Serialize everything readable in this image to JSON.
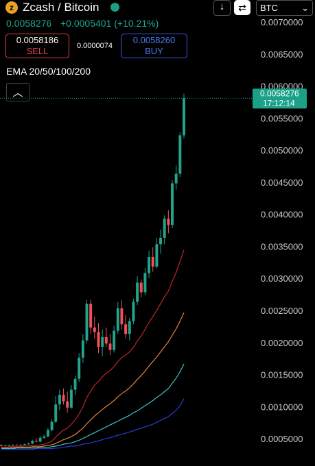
{
  "header": {
    "title": "Zcash / Bitcoin",
    "price": "0.0058276",
    "change": "+0.0005401 (+10.21%)",
    "sell_price": "0.0058186",
    "sell_label": "SELL",
    "spread": "0.0000074",
    "buy_price": "0.0058260",
    "buy_label": "BUY",
    "currency": "BTC",
    "indicator": "EMA 20/50/100/200"
  },
  "chart_data": {
    "type": "candlestick",
    "up_color": "#22a38c",
    "down_color": "#f0505a",
    "open": [
      0.00041,
      0.0004,
      0.00041,
      0.00041,
      0.00042,
      0.00041,
      0.00042,
      0.00043,
      0.00044,
      0.00048,
      0.00047,
      0.00053,
      0.00055,
      0.00065,
      0.00078,
      0.00105,
      0.0012,
      0.0011,
      0.001,
      0.00128,
      0.00145,
      0.00178,
      0.00205,
      0.00262,
      0.00225,
      0.00218,
      0.00195,
      0.0021,
      0.002,
      0.0019,
      0.0022,
      0.00255,
      0.0023,
      0.00215,
      0.00235,
      0.00265,
      0.00295,
      0.0028,
      0.0031,
      0.00335,
      0.0032,
      0.00355,
      0.00365,
      0.00395,
      0.00385,
      0.0045,
      0.00465,
      0.00525
    ],
    "high": [
      0.00043,
      0.00042,
      0.00042,
      0.00043,
      0.00043,
      0.00043,
      0.00044,
      0.00045,
      0.0005,
      0.00052,
      0.00055,
      0.00058,
      0.00068,
      0.00082,
      0.00118,
      0.00128,
      0.0013,
      0.00125,
      0.00135,
      0.0015,
      0.00185,
      0.00215,
      0.00268,
      0.00268,
      0.00242,
      0.00232,
      0.00222,
      0.00225,
      0.00215,
      0.00228,
      0.00265,
      0.00268,
      0.00245,
      0.0024,
      0.0027,
      0.00305,
      0.003,
      0.00318,
      0.00345,
      0.0035,
      0.00365,
      0.00378,
      0.004,
      0.00408,
      0.00455,
      0.00478,
      0.0053,
      0.0059
    ],
    "low": [
      0.00039,
      0.00039,
      0.0004,
      0.0004,
      0.00041,
      0.0004,
      0.00041,
      0.00042,
      0.00043,
      0.00046,
      0.00046,
      0.00051,
      0.00054,
      0.00063,
      0.00076,
      0.00096,
      0.00105,
      0.00092,
      0.00098,
      0.0012,
      0.0014,
      0.0017,
      0.002,
      0.00215,
      0.00208,
      0.00185,
      0.0018,
      0.00195,
      0.00182,
      0.00186,
      0.00215,
      0.00222,
      0.00208,
      0.00205,
      0.0023,
      0.0026,
      0.00272,
      0.00275,
      0.00302,
      0.00312,
      0.00318,
      0.0034,
      0.00355,
      0.00372,
      0.0038,
      0.0044,
      0.0046,
      0.0052
    ],
    "close": [
      0.0004,
      0.00041,
      0.00041,
      0.00042,
      0.00041,
      0.00042,
      0.00043,
      0.00044,
      0.00048,
      0.00047,
      0.00053,
      0.00055,
      0.00065,
      0.00078,
      0.00105,
      0.0012,
      0.0011,
      0.001,
      0.00128,
      0.00145,
      0.00178,
      0.00205,
      0.00262,
      0.00225,
      0.00218,
      0.00195,
      0.0021,
      0.002,
      0.0019,
      0.0022,
      0.00255,
      0.0023,
      0.00215,
      0.00235,
      0.00265,
      0.00295,
      0.0028,
      0.0031,
      0.00335,
      0.0032,
      0.00355,
      0.00365,
      0.00395,
      0.00385,
      0.0045,
      0.00465,
      0.00525,
      0.0058276
    ],
    "series": [
      {
        "color": "#c0262b",
        "values": [
          0.00038,
          0.00038,
          0.00039,
          0.00039,
          0.00039,
          0.00039,
          0.0004,
          0.0004,
          0.00041,
          0.00041,
          0.00042,
          0.00043,
          0.00045,
          0.00048,
          0.00054,
          0.0006,
          0.00065,
          0.00068,
          0.00074,
          0.00081,
          0.0009,
          0.00101,
          0.00116,
          0.00126,
          0.00135,
          0.00141,
          0.00148,
          0.00154,
          0.00158,
          0.00164,
          0.00172,
          0.00178,
          0.00182,
          0.00187,
          0.00194,
          0.00204,
          0.00212,
          0.00222,
          0.00233,
          0.00242,
          0.00252,
          0.00262,
          0.00273,
          0.00282,
          0.00297,
          0.00311,
          0.00328,
          0.00346
        ]
      },
      {
        "color": "#e8823a",
        "values": [
          0.00037,
          0.00037,
          0.00037,
          0.00038,
          0.00038,
          0.00038,
          0.00038,
          0.00038,
          0.00039,
          0.00039,
          0.00039,
          0.0004,
          0.00041,
          0.00042,
          0.00044,
          0.00047,
          0.0005,
          0.00052,
          0.00055,
          0.00058,
          0.00063,
          0.00068,
          0.00075,
          0.00081,
          0.00087,
          0.00092,
          0.00097,
          0.00102,
          0.00106,
          0.00111,
          0.00117,
          0.00122,
          0.00126,
          0.00131,
          0.00137,
          0.00144,
          0.0015,
          0.00157,
          0.00165,
          0.00172,
          0.00179,
          0.00187,
          0.00195,
          0.00203,
          0.00213,
          0.00223,
          0.00235,
          0.00248
        ]
      },
      {
        "color": "#3cc6c4",
        "values": [
          0.00036,
          0.00036,
          0.00036,
          0.00036,
          0.00037,
          0.00037,
          0.00037,
          0.00037,
          0.00037,
          0.00037,
          0.00038,
          0.00038,
          0.00038,
          0.00039,
          0.0004,
          0.00041,
          0.00043,
          0.00044,
          0.00045,
          0.00047,
          0.00049,
          0.00052,
          0.00055,
          0.00058,
          0.00061,
          0.00064,
          0.00067,
          0.0007,
          0.00073,
          0.00076,
          0.00079,
          0.00082,
          0.00085,
          0.00088,
          0.00092,
          0.00095,
          0.00099,
          0.00103,
          0.00107,
          0.00111,
          0.00116,
          0.0012,
          0.00125,
          0.0013,
          0.00138,
          0.00146,
          0.00156,
          0.00168
        ]
      },
      {
        "color": "#2a3adf",
        "values": [
          0.00035,
          0.00035,
          0.00035,
          0.00035,
          0.00035,
          0.00035,
          0.00035,
          0.00035,
          0.00035,
          0.00036,
          0.00036,
          0.00036,
          0.00036,
          0.00036,
          0.00037,
          0.00037,
          0.00038,
          0.00039,
          0.0004,
          0.0004,
          0.00041,
          0.00043,
          0.00044,
          0.00045,
          0.00047,
          0.00048,
          0.0005,
          0.00052,
          0.00053,
          0.00055,
          0.00057,
          0.00058,
          0.0006,
          0.00062,
          0.00064,
          0.00066,
          0.00068,
          0.0007,
          0.00072,
          0.00074,
          0.00077,
          0.0008,
          0.00083,
          0.00086,
          0.00091,
          0.00096,
          0.00103,
          0.00114
        ]
      }
    ],
    "ylim": [
      0.0001,
      0.00735
    ],
    "yticks": [
      {
        "value": 0.0005,
        "label": "0.0005000"
      },
      {
        "value": 0.001,
        "label": "0.0010000"
      },
      {
        "value": 0.0015,
        "label": "0.0015000"
      },
      {
        "value": 0.002,
        "label": "0.0020000"
      },
      {
        "value": 0.0025,
        "label": "0.0025000"
      },
      {
        "value": 0.003,
        "label": "0.0030000"
      },
      {
        "value": 0.0035,
        "label": "0.0035000"
      },
      {
        "value": 0.004,
        "label": "0.0040000"
      },
      {
        "value": 0.0045,
        "label": "0.0045000"
      },
      {
        "value": 0.005,
        "label": "0.0050000"
      },
      {
        "value": 0.0055,
        "label": "0.0055000"
      },
      {
        "value": 0.006,
        "label": "0.0060000"
      },
      {
        "value": 0.0065,
        "label": "0.0065000"
      },
      {
        "value": 0.007,
        "label": "0.0070000"
      }
    ],
    "last_price": {
      "value": 0.0058276,
      "label": "0.0058276",
      "time": "17:12:14",
      "color": "#1aa187"
    }
  }
}
